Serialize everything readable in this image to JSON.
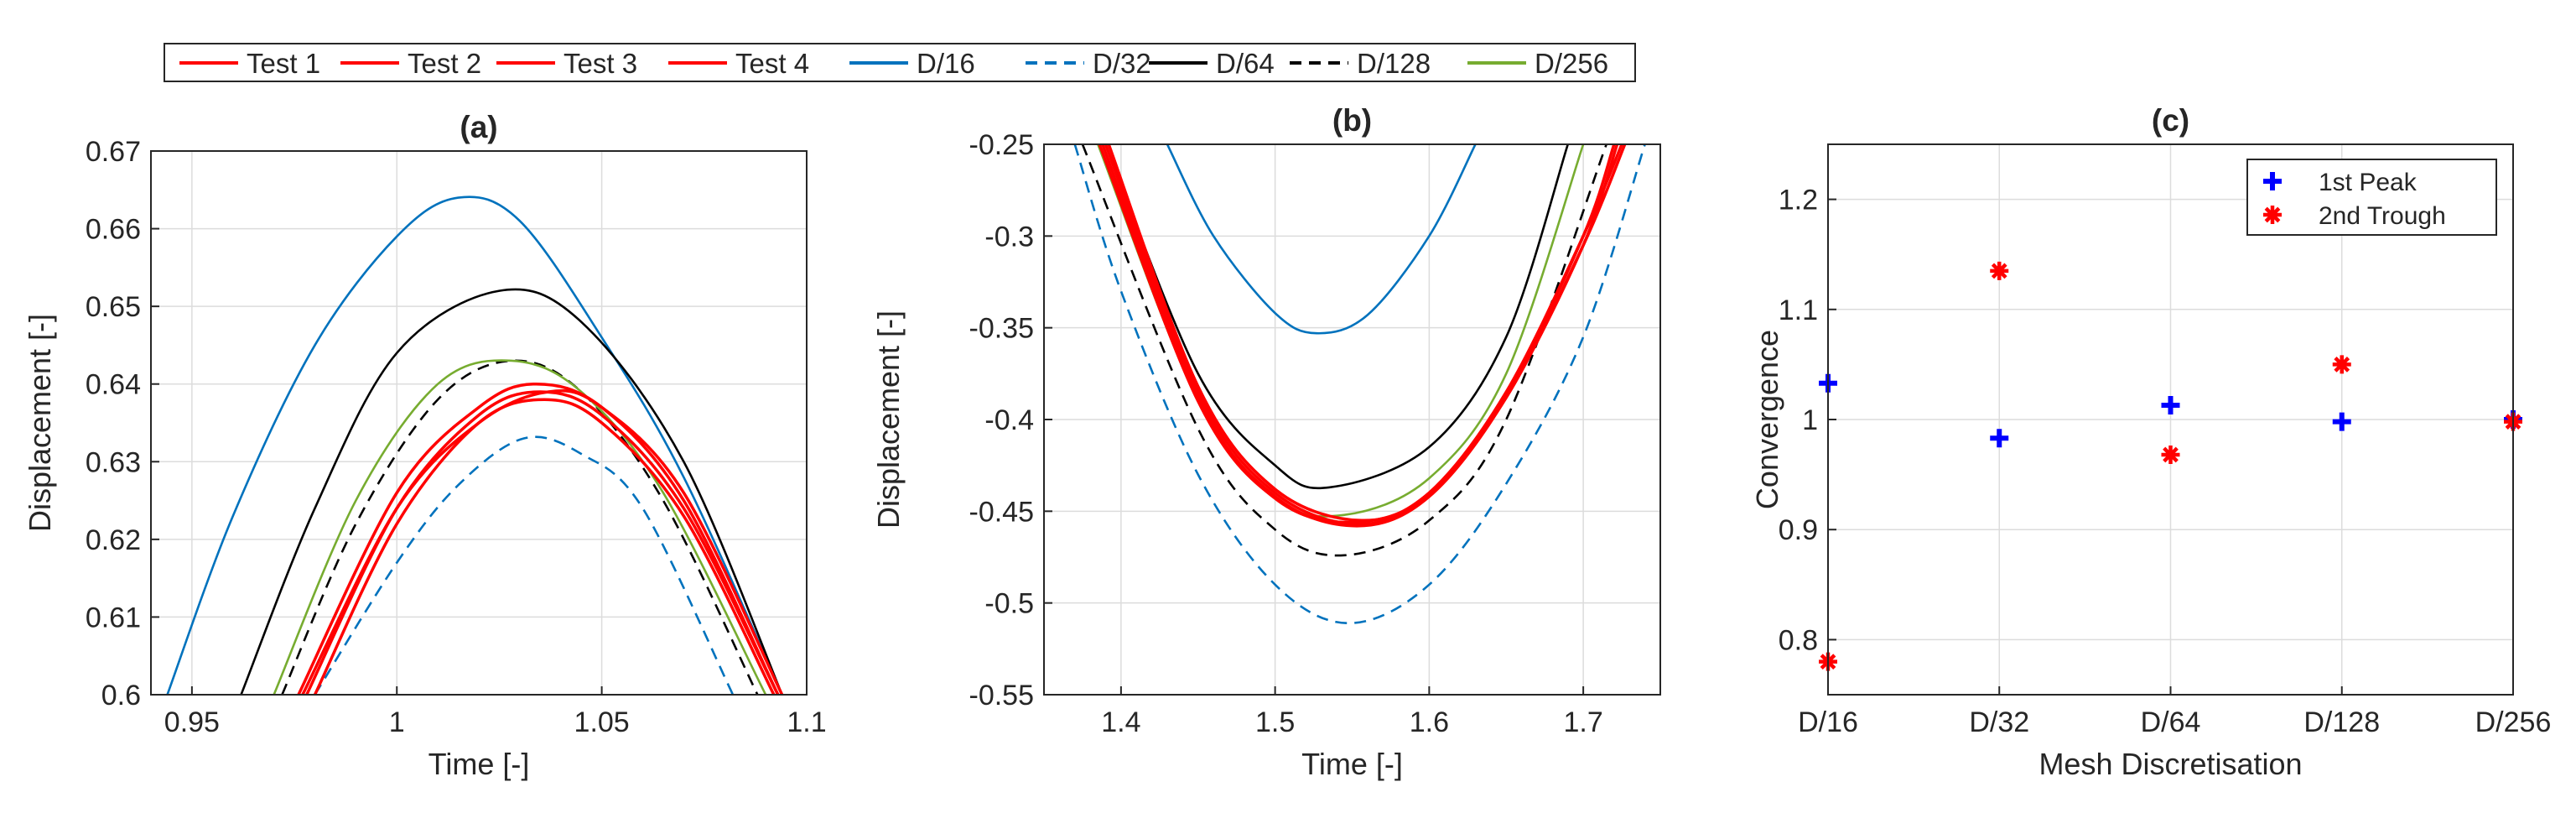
{
  "legend": {
    "items": [
      {
        "label": "Test 1",
        "color": "#ff0000",
        "dash": "solid"
      },
      {
        "label": "Test 2",
        "color": "#ff0000",
        "dash": "solid"
      },
      {
        "label": "Test 3",
        "color": "#ff0000",
        "dash": "solid"
      },
      {
        "label": "Test 4",
        "color": "#ff0000",
        "dash": "solid"
      },
      {
        "label": "D/16",
        "color": "#0072bd",
        "dash": "solid"
      },
      {
        "label": "D/32",
        "color": "#0072bd",
        "dash": "dashed"
      },
      {
        "label": "D/64",
        "color": "#000000",
        "dash": "solid"
      },
      {
        "label": "D/128",
        "color": "#000000",
        "dash": "dashed"
      },
      {
        "label": "D/256",
        "color": "#77ac30",
        "dash": "solid"
      }
    ]
  },
  "chart_data": [
    {
      "panel": "(a)",
      "type": "line",
      "title": "(a)",
      "xlabel": "Time [-]",
      "ylabel": "Displacement [-]",
      "xlim": [
        0.94,
        1.1
      ],
      "ylim": [
        0.6,
        0.67
      ],
      "xticks": [
        0.95,
        1,
        1.05,
        1.1
      ],
      "xtick_labels": [
        "0.95",
        "1",
        "1.05",
        "1.1"
      ],
      "yticks": [
        0.6,
        0.61,
        0.62,
        0.63,
        0.64,
        0.65,
        0.66,
        0.67
      ],
      "ytick_labels": [
        "0.6",
        "0.61",
        "0.62",
        "0.63",
        "0.64",
        "0.65",
        "0.66",
        "0.67"
      ],
      "grid": true,
      "series": [
        {
          "name": "Test 1",
          "color": "#ff0000",
          "dash": "solid",
          "x": [
            0.978,
            1.0,
            1.02,
            1.035,
            1.05,
            1.07,
            1.093
          ],
          "y": [
            0.6,
            0.624,
            0.636,
            0.639,
            0.636,
            0.624,
            0.6
          ]
        },
        {
          "name": "Test 2",
          "color": "#ff0000",
          "dash": "solid",
          "x": [
            0.98,
            1.0,
            1.02,
            1.036,
            1.05,
            1.07,
            1.092
          ],
          "y": [
            0.6,
            0.622,
            0.635,
            0.638,
            0.635,
            0.623,
            0.6
          ]
        },
        {
          "name": "Test 3",
          "color": "#ff0000",
          "dash": "solid",
          "x": [
            0.976,
            1.0,
            1.02,
            1.034,
            1.05,
            1.07,
            1.093
          ],
          "y": [
            0.6,
            0.626,
            0.637,
            0.64,
            0.637,
            0.625,
            0.6
          ]
        },
        {
          "name": "Test 4",
          "color": "#ff0000",
          "dash": "solid",
          "x": [
            0.977,
            1.0,
            1.02,
            1.037,
            1.05,
            1.07,
            1.094
          ],
          "y": [
            0.6,
            0.624,
            0.635,
            0.639,
            0.637,
            0.626,
            0.6
          ]
        },
        {
          "name": "D/16",
          "color": "#0072bd",
          "dash": "solid",
          "x": [
            0.944,
            0.96,
            0.98,
            1.0,
            1.015,
            1.03,
            1.05,
            1.07,
            1.094
          ],
          "y": [
            0.6,
            0.623,
            0.645,
            0.659,
            0.664,
            0.661,
            0.646,
            0.628,
            0.6
          ]
        },
        {
          "name": "D/32",
          "color": "#0072bd",
          "dash": "dashed",
          "x": [
            0.98,
            1.0,
            1.015,
            1.031,
            1.045,
            1.06,
            1.082
          ],
          "y": [
            0.6,
            0.617,
            0.627,
            0.633,
            0.631,
            0.624,
            0.6
          ]
        },
        {
          "name": "D/64",
          "color": "#000000",
          "dash": "solid",
          "x": [
            0.962,
            0.98,
            1.0,
            1.025,
            1.045,
            1.07,
            1.094
          ],
          "y": [
            0.6,
            0.624,
            0.644,
            0.652,
            0.648,
            0.63,
            0.6
          ]
        },
        {
          "name": "D/128",
          "color": "#000000",
          "dash": "dashed",
          "x": [
            0.972,
            0.99,
            1.01,
            1.028,
            1.045,
            1.065,
            1.088
          ],
          "y": [
            0.6,
            0.622,
            0.638,
            0.643,
            0.639,
            0.625,
            0.6
          ]
        },
        {
          "name": "D/256",
          "color": "#77ac30",
          "dash": "solid",
          "x": [
            0.97,
            0.99,
            1.01,
            1.028,
            1.045,
            1.065,
            1.09
          ],
          "y": [
            0.6,
            0.625,
            0.64,
            0.643,
            0.639,
            0.626,
            0.6
          ]
        }
      ]
    },
    {
      "panel": "(b)",
      "type": "line",
      "title": "(b)",
      "xlabel": "Time [-]",
      "ylabel": "Displacement [-]",
      "xlim": [
        1.35,
        1.75
      ],
      "ylim": [
        -0.55,
        -0.25
      ],
      "xticks": [
        1.4,
        1.5,
        1.6,
        1.7
      ],
      "xtick_labels": [
        "1.4",
        "1.5",
        "1.6",
        "1.7"
      ],
      "yticks": [
        -0.55,
        -0.5,
        -0.45,
        -0.4,
        -0.35,
        -0.3,
        -0.25
      ],
      "ytick_labels": [
        "-0.55",
        "-0.5",
        "-0.45",
        "-0.4",
        "-0.35",
        "-0.3",
        "-0.25"
      ],
      "grid": true,
      "series": [
        {
          "name": "Test 1",
          "color": "#ff0000",
          "dash": "solid",
          "x": [
            1.39,
            1.45,
            1.5,
            1.555,
            1.6,
            1.65,
            1.7,
            1.725
          ],
          "y": [
            -0.25,
            -0.385,
            -0.44,
            -0.457,
            -0.44,
            -0.385,
            -0.3,
            -0.25
          ]
        },
        {
          "name": "Test 2",
          "color": "#ff0000",
          "dash": "solid",
          "x": [
            1.388,
            1.45,
            1.5,
            1.553,
            1.6,
            1.65,
            1.7,
            1.722
          ],
          "y": [
            -0.25,
            -0.388,
            -0.442,
            -0.458,
            -0.442,
            -0.388,
            -0.305,
            -0.25
          ]
        },
        {
          "name": "Test 3",
          "color": "#ff0000",
          "dash": "solid",
          "x": [
            1.386,
            1.45,
            1.5,
            1.55,
            1.6,
            1.65,
            1.7,
            1.72
          ],
          "y": [
            -0.25,
            -0.39,
            -0.443,
            -0.456,
            -0.441,
            -0.386,
            -0.3,
            -0.25
          ]
        },
        {
          "name": "Test 4",
          "color": "#ff0000",
          "dash": "solid",
          "x": [
            1.392,
            1.45,
            1.5,
            1.556,
            1.6,
            1.65,
            1.7,
            1.727
          ],
          "y": [
            -0.25,
            -0.382,
            -0.438,
            -0.455,
            -0.44,
            -0.388,
            -0.305,
            -0.25
          ]
        },
        {
          "name": "D/16",
          "color": "#0072bd",
          "dash": "solid",
          "x": [
            1.43,
            1.46,
            1.5,
            1.527,
            1.56,
            1.6,
            1.63
          ],
          "y": [
            -0.25,
            -0.3,
            -0.342,
            -0.353,
            -0.343,
            -0.3,
            -0.25
          ]
        },
        {
          "name": "D/32",
          "color": "#0072bd",
          "dash": "dashed",
          "x": [
            1.37,
            1.4,
            1.45,
            1.5,
            1.548,
            1.6,
            1.65,
            1.7,
            1.74
          ],
          "y": [
            -0.25,
            -0.33,
            -0.43,
            -0.49,
            -0.511,
            -0.49,
            -0.435,
            -0.355,
            -0.25
          ]
        },
        {
          "name": "D/64",
          "color": "#000000",
          "dash": "solid",
          "x": [
            1.39,
            1.45,
            1.5,
            1.535,
            1.6,
            1.65,
            1.69
          ],
          "y": [
            -0.25,
            -0.375,
            -0.425,
            -0.437,
            -0.415,
            -0.355,
            -0.25
          ]
        },
        {
          "name": "D/128",
          "color": "#000000",
          "dash": "dashed",
          "x": [
            1.375,
            1.45,
            1.5,
            1.545,
            1.6,
            1.65,
            1.715
          ],
          "y": [
            -0.25,
            -0.405,
            -0.46,
            -0.474,
            -0.455,
            -0.4,
            -0.25
          ]
        },
        {
          "name": "D/256",
          "color": "#77ac30",
          "dash": "solid",
          "x": [
            1.385,
            1.45,
            1.5,
            1.545,
            1.6,
            1.65,
            1.7
          ],
          "y": [
            -0.25,
            -0.39,
            -0.443,
            -0.452,
            -0.432,
            -0.375,
            -0.25
          ]
        }
      ]
    },
    {
      "panel": "(c)",
      "type": "scatter",
      "title": "(c)",
      "xlabel": "Mesh Discretisation",
      "ylabel": "Convergence",
      "categories": [
        "D/16",
        "D/32",
        "D/64",
        "D/128",
        "D/256"
      ],
      "ylim": [
        0.75,
        1.25
      ],
      "yticks": [
        0.8,
        0.9,
        1,
        1.1,
        1.2
      ],
      "ytick_labels": [
        "0.8",
        "0.9",
        "1",
        "1.1",
        "1.2"
      ],
      "grid": true,
      "legend_position": "top-right",
      "series": [
        {
          "name": "1st Peak",
          "color": "#0000ff",
          "marker": "+",
          "values": [
            1.033,
            0.983,
            1.013,
            0.998,
            1.0
          ]
        },
        {
          "name": "2nd Trough",
          "color": "#ff0000",
          "marker": "*",
          "values": [
            0.78,
            1.135,
            0.968,
            1.05,
            0.998
          ]
        }
      ]
    }
  ]
}
